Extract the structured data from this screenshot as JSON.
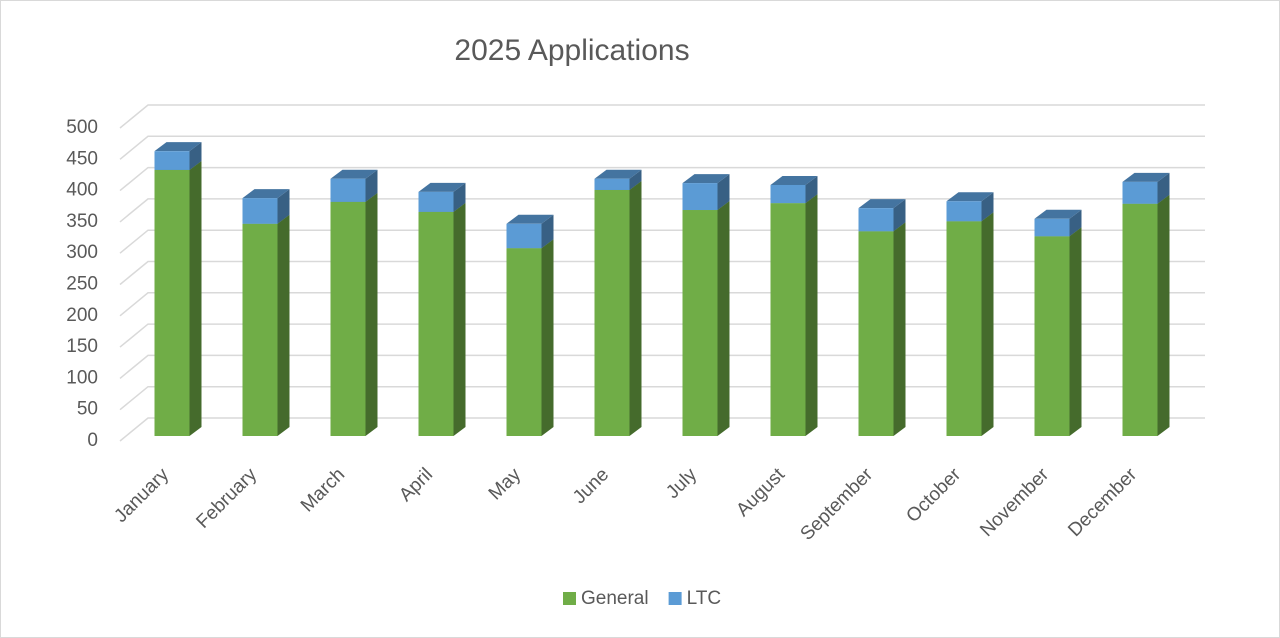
{
  "chart_data": {
    "type": "bar",
    "stacked": true,
    "title": "2025 Applications",
    "categories": [
      "January",
      "February",
      "March",
      "April",
      "May",
      "June",
      "July",
      "August",
      "September",
      "October",
      "November",
      "December"
    ],
    "series": [
      {
        "name": "General",
        "color": "#70ad47",
        "values": [
          425,
          339,
          374,
          358,
          300,
          393,
          361,
          372,
          327,
          343,
          319,
          371
        ]
      },
      {
        "name": "LTC",
        "color": "#5b9bd5",
        "values": [
          30,
          41,
          37,
          32,
          39,
          18,
          43,
          29,
          37,
          32,
          28,
          35
        ]
      }
    ],
    "ylim": [
      0,
      500
    ],
    "yticks": [
      0,
      50,
      100,
      150,
      200,
      250,
      300,
      350,
      400,
      450,
      500
    ],
    "grid": true,
    "legend": "bottom"
  }
}
